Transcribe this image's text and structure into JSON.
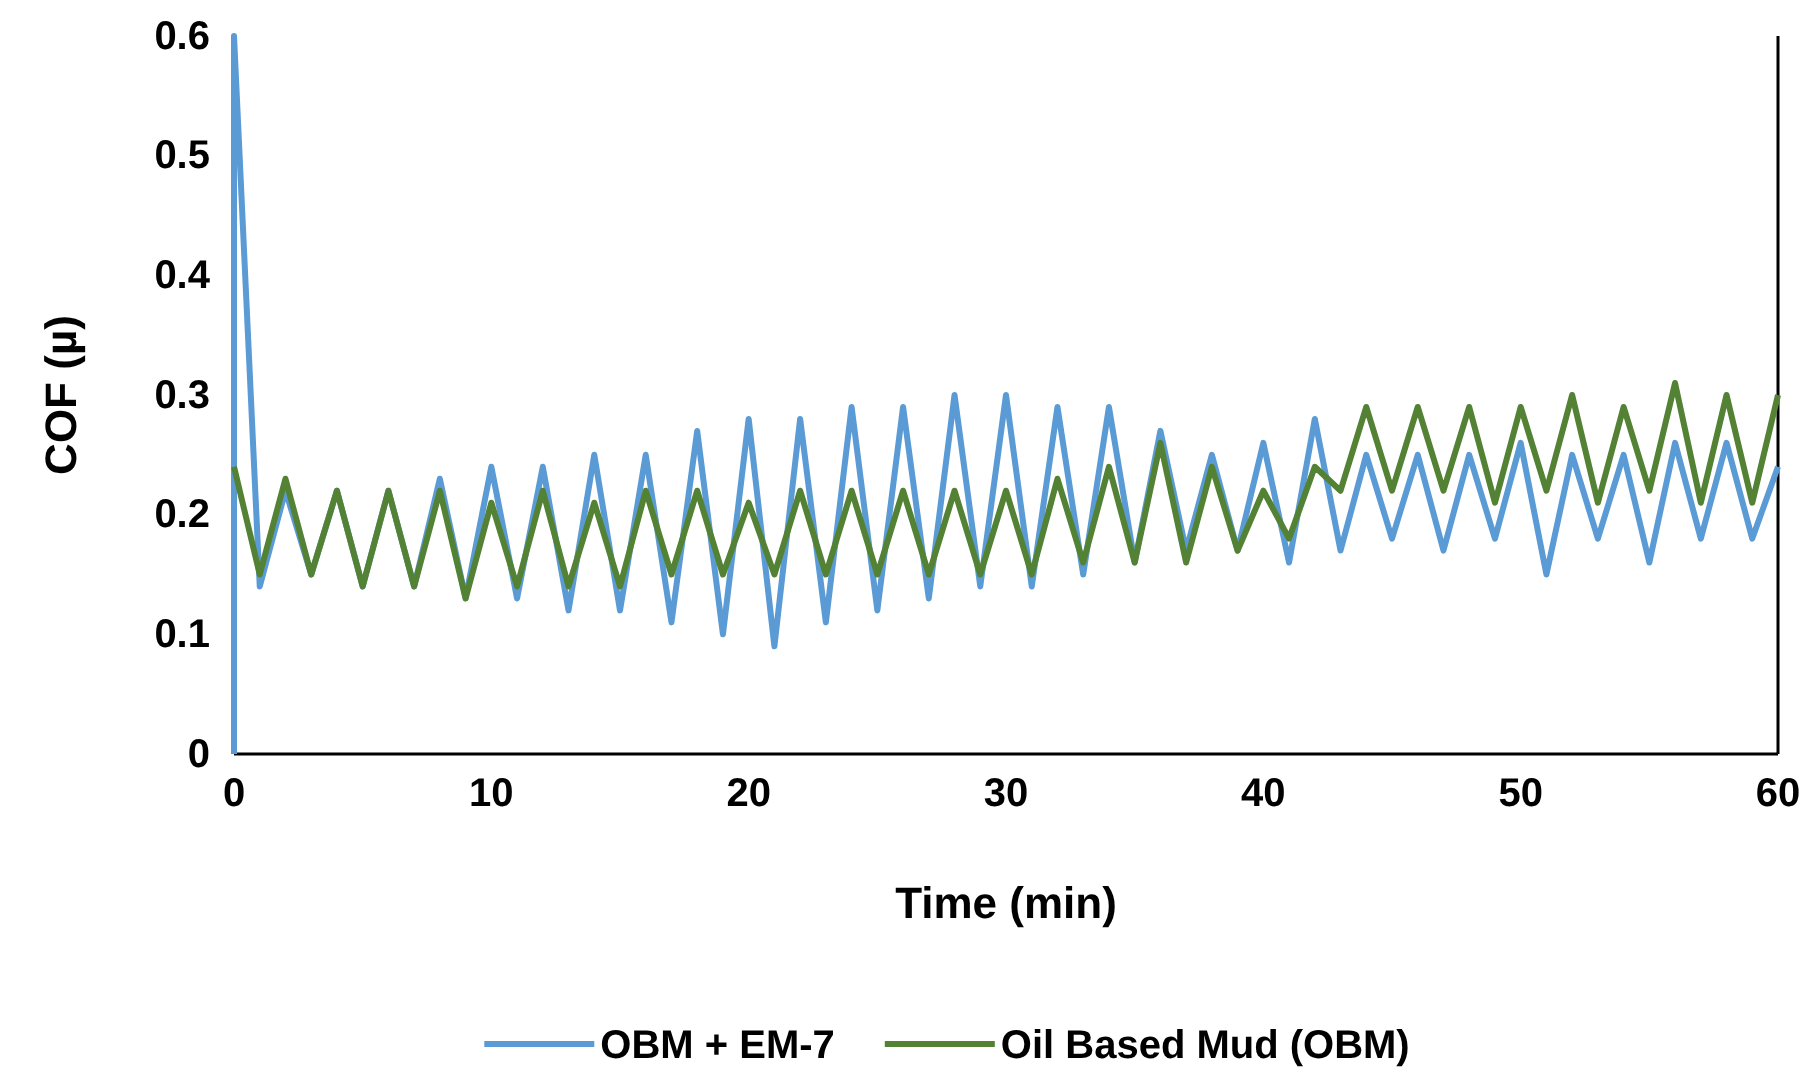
{
  "chart_data": {
    "type": "line",
    "xlabel": "Time (min)",
    "ylabel": "COF (µ)",
    "xlim": [
      0,
      60
    ],
    "xticks": [
      0,
      10,
      20,
      30,
      40,
      50,
      60
    ],
    "ylim": [
      0,
      0.6
    ],
    "yticks": [
      0,
      0.1,
      0.2,
      0.3,
      0.4,
      0.5,
      0.6
    ],
    "legend": "bottom",
    "grid": false,
    "marker": "none",
    "line_style": "solid",
    "series": [
      {
        "name": "OBM + EM-7",
        "color": "#5b9bd5",
        "x": [
          0,
          0,
          1,
          2,
          3,
          4,
          5,
          6,
          7,
          8,
          9,
          10,
          11,
          12,
          13,
          14,
          15,
          16,
          17,
          18,
          19,
          20,
          21,
          22,
          23,
          24,
          25,
          26,
          27,
          28,
          29,
          30,
          31,
          32,
          33,
          34,
          35,
          36,
          37,
          38,
          39,
          40,
          41,
          42,
          43,
          44,
          45,
          46,
          47,
          48,
          49,
          50,
          51,
          52,
          53,
          54,
          55,
          56,
          57,
          58,
          59,
          60
        ],
        "values": [
          0,
          0.6,
          0.14,
          0.22,
          0.15,
          0.22,
          0.14,
          0.22,
          0.14,
          0.23,
          0.13,
          0.24,
          0.13,
          0.24,
          0.12,
          0.25,
          0.12,
          0.25,
          0.11,
          0.27,
          0.1,
          0.28,
          0.09,
          0.28,
          0.11,
          0.29,
          0.12,
          0.29,
          0.13,
          0.3,
          0.14,
          0.3,
          0.14,
          0.29,
          0.15,
          0.29,
          0.16,
          0.27,
          0.17,
          0.25,
          0.17,
          0.26,
          0.16,
          0.28,
          0.17,
          0.25,
          0.18,
          0.25,
          0.17,
          0.25,
          0.18,
          0.26,
          0.15,
          0.25,
          0.18,
          0.25,
          0.16,
          0.26,
          0.18,
          0.26,
          0.18,
          0.24
        ]
      },
      {
        "name": "Oil Based Mud (OBM)",
        "color": "#548235",
        "x": [
          0,
          1,
          2,
          3,
          4,
          5,
          6,
          7,
          8,
          9,
          10,
          11,
          12,
          13,
          14,
          15,
          16,
          17,
          18,
          19,
          20,
          21,
          22,
          23,
          24,
          25,
          26,
          27,
          28,
          29,
          30,
          31,
          32,
          33,
          34,
          35,
          36,
          37,
          38,
          39,
          40,
          41,
          42,
          43,
          44,
          45,
          46,
          47,
          48,
          49,
          50,
          51,
          52,
          53,
          54,
          55,
          56,
          57,
          58,
          59,
          60
        ],
        "values": [
          0.24,
          0.15,
          0.23,
          0.15,
          0.22,
          0.14,
          0.22,
          0.14,
          0.22,
          0.13,
          0.21,
          0.14,
          0.22,
          0.14,
          0.21,
          0.14,
          0.22,
          0.15,
          0.22,
          0.15,
          0.21,
          0.15,
          0.22,
          0.15,
          0.22,
          0.15,
          0.22,
          0.15,
          0.22,
          0.15,
          0.22,
          0.15,
          0.23,
          0.16,
          0.24,
          0.16,
          0.26,
          0.16,
          0.24,
          0.17,
          0.22,
          0.18,
          0.24,
          0.22,
          0.29,
          0.22,
          0.29,
          0.22,
          0.29,
          0.21,
          0.29,
          0.22,
          0.3,
          0.21,
          0.29,
          0.22,
          0.31,
          0.21,
          0.3,
          0.21,
          0.3
        ]
      }
    ]
  }
}
